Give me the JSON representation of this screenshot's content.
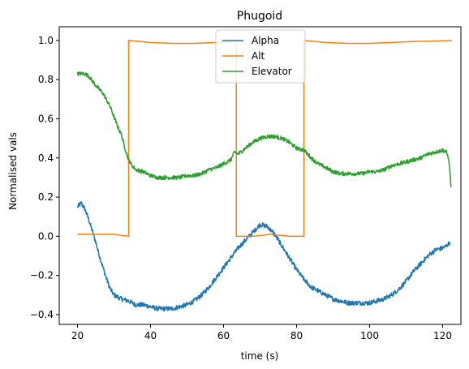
{
  "chart_data": {
    "type": "line",
    "title": "Phugoid",
    "xlabel": "time (s)",
    "ylabel": "Normalised vals",
    "xlim": [
      15.0,
      125.0
    ],
    "ylim": [
      -0.45,
      1.07
    ],
    "xticks": [
      20,
      40,
      60,
      80,
      100,
      120
    ],
    "yticks": [
      -0.4,
      -0.2,
      0.0,
      0.2,
      0.4,
      0.6,
      0.8,
      1.0
    ],
    "xtick_labels": [
      "20",
      "40",
      "60",
      "80",
      "100",
      "120"
    ],
    "ytick_labels": [
      "−0.4",
      "−0.2",
      "0.0",
      "0.2",
      "0.4",
      "0.6",
      "0.8",
      "1.0"
    ],
    "grid": false,
    "legend_position": "top-center",
    "series": [
      {
        "name": "Alpha",
        "color": "#1f77b4",
        "noise": 0.012,
        "points": [
          [
            20,
            0.15
          ],
          [
            21,
            0.17
          ],
          [
            22,
            0.14
          ],
          [
            23,
            0.09
          ],
          [
            24,
            0.03
          ],
          [
            25,
            -0.03
          ],
          [
            26,
            -0.1
          ],
          [
            27,
            -0.16
          ],
          [
            28,
            -0.22
          ],
          [
            29,
            -0.27
          ],
          [
            30,
            -0.3
          ],
          [
            32,
            -0.32
          ],
          [
            34,
            -0.33
          ],
          [
            36,
            -0.35
          ],
          [
            38,
            -0.35
          ],
          [
            40,
            -0.36
          ],
          [
            42,
            -0.37
          ],
          [
            44,
            -0.37
          ],
          [
            46,
            -0.37
          ],
          [
            48,
            -0.36
          ],
          [
            50,
            -0.35
          ],
          [
            52,
            -0.33
          ],
          [
            54,
            -0.3
          ],
          [
            56,
            -0.26
          ],
          [
            58,
            -0.21
          ],
          [
            60,
            -0.16
          ],
          [
            62,
            -0.11
          ],
          [
            64,
            -0.06
          ],
          [
            66,
            -0.02
          ],
          [
            68,
            0.02
          ],
          [
            70,
            0.06
          ],
          [
            72,
            0.05
          ],
          [
            74,
            0.01
          ],
          [
            76,
            -0.05
          ],
          [
            78,
            -0.11
          ],
          [
            80,
            -0.17
          ],
          [
            82,
            -0.22
          ],
          [
            84,
            -0.26
          ],
          [
            86,
            -0.28
          ],
          [
            88,
            -0.3
          ],
          [
            90,
            -0.32
          ],
          [
            92,
            -0.33
          ],
          [
            94,
            -0.34
          ],
          [
            96,
            -0.34
          ],
          [
            98,
            -0.34
          ],
          [
            100,
            -0.34
          ],
          [
            102,
            -0.33
          ],
          [
            104,
            -0.32
          ],
          [
            106,
            -0.3
          ],
          [
            108,
            -0.27
          ],
          [
            110,
            -0.23
          ],
          [
            112,
            -0.18
          ],
          [
            114,
            -0.14
          ],
          [
            116,
            -0.1
          ],
          [
            118,
            -0.07
          ],
          [
            120,
            -0.06
          ],
          [
            121,
            -0.05
          ],
          [
            122,
            -0.03
          ]
        ]
      },
      {
        "name": "Alt",
        "color": "#ff7f0e",
        "noise": 0,
        "points": [
          [
            20,
            0.01
          ],
          [
            26,
            0.01
          ],
          [
            30,
            0.01
          ],
          [
            34,
            0.0
          ],
          [
            34,
            1.0
          ],
          [
            40,
            0.99
          ],
          [
            46,
            0.985
          ],
          [
            52,
            0.985
          ],
          [
            58,
            0.99
          ],
          [
            63.5,
            0.99
          ],
          [
            63.5,
            0.0
          ],
          [
            68,
            0.0
          ],
          [
            73,
            0.01
          ],
          [
            78,
            0.0
          ],
          [
            82,
            0.0
          ],
          [
            82,
            1.0
          ],
          [
            88,
            0.99
          ],
          [
            94,
            0.985
          ],
          [
            100,
            0.985
          ],
          [
            106,
            0.99
          ],
          [
            112,
            0.995
          ],
          [
            118,
            0.997
          ],
          [
            122.5,
            1.0
          ]
        ]
      },
      {
        "name": "Elevator",
        "color": "#2ca02c",
        "noise": 0.01,
        "points": [
          [
            20,
            0.83
          ],
          [
            22,
            0.83
          ],
          [
            23,
            0.82
          ],
          [
            25,
            0.77
          ],
          [
            27,
            0.73
          ],
          [
            29,
            0.66
          ],
          [
            31,
            0.56
          ],
          [
            32,
            0.52
          ],
          [
            33,
            0.45
          ],
          [
            34,
            0.39
          ],
          [
            35,
            0.36
          ],
          [
            36,
            0.34
          ],
          [
            38,
            0.33
          ],
          [
            40,
            0.31
          ],
          [
            42,
            0.3
          ],
          [
            44,
            0.3
          ],
          [
            46,
            0.3
          ],
          [
            48,
            0.3
          ],
          [
            50,
            0.31
          ],
          [
            52,
            0.31
          ],
          [
            54,
            0.32
          ],
          [
            56,
            0.34
          ],
          [
            58,
            0.35
          ],
          [
            60,
            0.37
          ],
          [
            62,
            0.39
          ],
          [
            63,
            0.43
          ],
          [
            64,
            0.42
          ],
          [
            66,
            0.45
          ],
          [
            68,
            0.48
          ],
          [
            70,
            0.5
          ],
          [
            72,
            0.51
          ],
          [
            74,
            0.51
          ],
          [
            76,
            0.5
          ],
          [
            78,
            0.48
          ],
          [
            80,
            0.45
          ],
          [
            82,
            0.44
          ],
          [
            84,
            0.4
          ],
          [
            86,
            0.37
          ],
          [
            88,
            0.35
          ],
          [
            90,
            0.33
          ],
          [
            92,
            0.32
          ],
          [
            94,
            0.32
          ],
          [
            96,
            0.32
          ],
          [
            98,
            0.32
          ],
          [
            100,
            0.33
          ],
          [
            102,
            0.33
          ],
          [
            104,
            0.34
          ],
          [
            106,
            0.36
          ],
          [
            108,
            0.37
          ],
          [
            110,
            0.38
          ],
          [
            112,
            0.39
          ],
          [
            114,
            0.4
          ],
          [
            116,
            0.42
          ],
          [
            118,
            0.43
          ],
          [
            120,
            0.44
          ],
          [
            121,
            0.43
          ],
          [
            121.6,
            0.4
          ],
          [
            122,
            0.33
          ],
          [
            122.3,
            0.25
          ]
        ]
      }
    ]
  }
}
